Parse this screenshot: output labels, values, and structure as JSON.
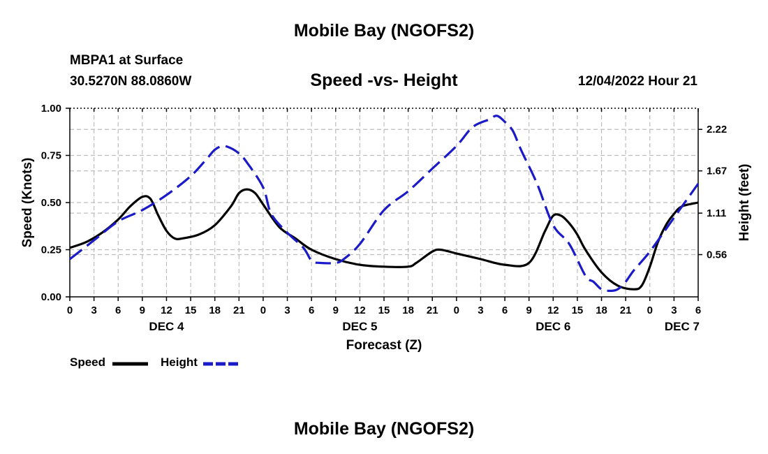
{
  "page": {
    "title_top": "Mobile Bay (NGOFS2)",
    "station": "MBPA1 at Surface",
    "coords": "30.5270N  88.0860W",
    "subtitle": "Speed -vs- Height",
    "datetime": "12/04/2022 Hour 21",
    "title_bottom": "Mobile Bay (NGOFS2)"
  },
  "legend": {
    "speed_label": "Speed",
    "height_label": "Height"
  },
  "colors": {
    "speed": "#000000",
    "height": "#1a1ac8",
    "grid": "#bdbdbd"
  },
  "chart_data": {
    "type": "line",
    "title": "Speed -vs- Height",
    "xlabel": "Forecast (Z)",
    "ylabel": "Speed (Knots)",
    "y2label": "Height (feet)",
    "x_unit": "hours from Dec 4 00Z",
    "xlim": [
      0,
      78
    ],
    "ylim": [
      0,
      1.0
    ],
    "y2lim": [
      0,
      2.5
    ],
    "x_ticks": [
      0,
      3,
      6,
      9,
      12,
      15,
      18,
      21,
      24,
      27,
      30,
      33,
      36,
      39,
      42,
      45,
      48,
      51,
      54,
      57,
      60,
      63,
      66,
      69,
      72,
      75,
      78
    ],
    "x_tick_labels": [
      "0",
      "3",
      "6",
      "9",
      "12",
      "15",
      "18",
      "21",
      "0",
      "3",
      "6",
      "9",
      "12",
      "15",
      "18",
      "21",
      "0",
      "3",
      "6",
      "9",
      "12",
      "15",
      "18",
      "21",
      "0",
      "3",
      "6"
    ],
    "y_ticks": [
      0,
      0.25,
      0.5,
      0.75,
      1.0
    ],
    "y_tick_labels": [
      "0.00",
      "0.25",
      "0.50",
      "0.75",
      "1.00"
    ],
    "y2_ticks": [
      0.56,
      1.11,
      1.67,
      2.22
    ],
    "y2_tick_labels": [
      "0.56",
      "1.11",
      "1.67",
      "2.22"
    ],
    "day_labels": [
      {
        "x": 12,
        "label": "DEC 4"
      },
      {
        "x": 36,
        "label": "DEC 5"
      },
      {
        "x": 60,
        "label": "DEC 6"
      },
      {
        "x": 76,
        "label": "DEC 7"
      }
    ],
    "grid": true,
    "series": [
      {
        "name": "Speed",
        "axis": "left",
        "style": "solid",
        "x": [
          0,
          2,
          4,
          6,
          7.5,
          9,
          10,
          11,
          12,
          13,
          14,
          16,
          18,
          20,
          21,
          22,
          23,
          24,
          26,
          28,
          30,
          33,
          36,
          39,
          42,
          43,
          45,
          46,
          48,
          51,
          54,
          57,
          59,
          60,
          61,
          62,
          63,
          64,
          66,
          68,
          70,
          71,
          72,
          73,
          74,
          75,
          76,
          78
        ],
        "values": [
          0.26,
          0.29,
          0.34,
          0.41,
          0.48,
          0.53,
          0.52,
          0.43,
          0.35,
          0.31,
          0.31,
          0.33,
          0.38,
          0.48,
          0.55,
          0.57,
          0.55,
          0.49,
          0.37,
          0.31,
          0.25,
          0.2,
          0.17,
          0.16,
          0.16,
          0.18,
          0.24,
          0.25,
          0.23,
          0.2,
          0.17,
          0.18,
          0.35,
          0.43,
          0.43,
          0.39,
          0.33,
          0.25,
          0.13,
          0.06,
          0.04,
          0.06,
          0.16,
          0.29,
          0.38,
          0.44,
          0.48,
          0.5
        ]
      },
      {
        "name": "Height",
        "axis": "right",
        "style": "dashed",
        "x": [
          0,
          3,
          6,
          9,
          12,
          15,
          17,
          18,
          19,
          20,
          21,
          22,
          24,
          25,
          27,
          29,
          30,
          31,
          33,
          34,
          36,
          39,
          42,
          45,
          48,
          50,
          52,
          53,
          54,
          55,
          56,
          58,
          60,
          62,
          64,
          65,
          66,
          67,
          68,
          69,
          70,
          72,
          75,
          78
        ],
        "values": [
          0.5,
          0.75,
          1.0,
          1.15,
          1.35,
          1.6,
          1.83,
          1.95,
          2.0,
          1.97,
          1.9,
          1.78,
          1.45,
          1.1,
          0.85,
          0.65,
          0.48,
          0.45,
          0.45,
          0.5,
          0.7,
          1.15,
          1.4,
          1.7,
          2.0,
          2.25,
          2.35,
          2.4,
          2.32,
          2.2,
          1.95,
          1.5,
          0.95,
          0.7,
          0.28,
          0.2,
          0.1,
          0.08,
          0.1,
          0.2,
          0.35,
          0.6,
          1.05,
          1.5
        ]
      }
    ]
  }
}
